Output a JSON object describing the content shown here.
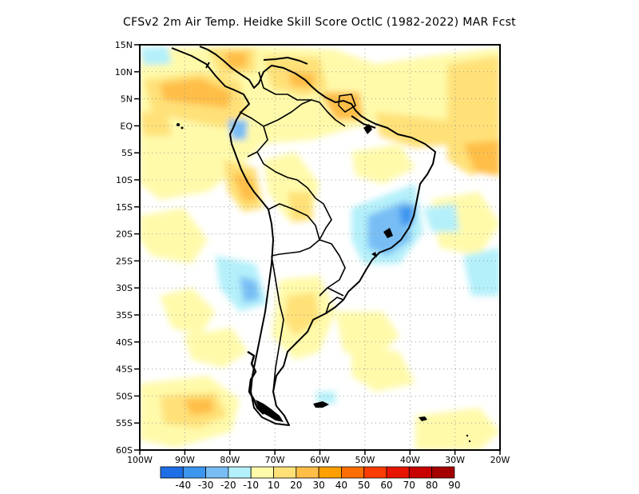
{
  "title": "CFSv2  2m Air Temp. Heidke Skill Score OctlC (1982-2022) MAR Fcst",
  "map": {
    "lat_labels": [
      "15N",
      "10N",
      "5N",
      "EQ",
      "5S",
      "10S",
      "15S",
      "20S",
      "25S",
      "30S",
      "35S",
      "40S",
      "45S",
      "50S",
      "55S",
      "60S"
    ],
    "lon_labels": [
      "100W",
      "90W",
      "80W",
      "70W",
      "60W",
      "50W",
      "40W",
      "30W",
      "20W"
    ],
    "lat_range": [
      -60,
      15
    ],
    "lon_range": [
      -100,
      -20
    ],
    "grid": "dotted"
  },
  "colorbar": {
    "labels": [
      "-40",
      "-30",
      "-20",
      "-10",
      "10",
      "20",
      "30",
      "40",
      "50",
      "60",
      "70",
      "80",
      "90"
    ],
    "colors": [
      "#1e6ee6",
      "#3c96f0",
      "#78bef5",
      "#b4f0fa",
      "#fffaaa",
      "#ffe178",
      "#ffbe46",
      "#ffa000",
      "#ff6e00",
      "#ff3c00",
      "#e61400",
      "#c80000",
      "#a50000"
    ]
  },
  "colors": {
    "background": "#ffffff",
    "coast": "#000000",
    "grid": "#999999"
  }
}
